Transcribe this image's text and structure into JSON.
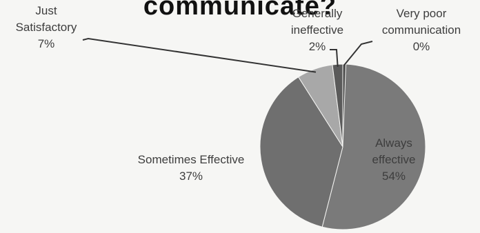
{
  "chart_data": {
    "type": "pie",
    "title": "communicate?",
    "slices": [
      {
        "label_lines": [
          "Always",
          "effective"
        ],
        "pct_label": "54%",
        "value": 54,
        "color": "#7a7a7a"
      },
      {
        "label_lines": [
          "Sometimes Effective"
        ],
        "pct_label": "37%",
        "value": 37,
        "color": "#6f6f6f"
      },
      {
        "label_lines": [
          "Just",
          "Satisfactory"
        ],
        "pct_label": "7%",
        "value": 7,
        "color": "#a8a8a8"
      },
      {
        "label_lines": [
          "Generally",
          "ineffective"
        ],
        "pct_label": "2%",
        "value": 2,
        "color": "#5a5a5a"
      },
      {
        "label_lines": [
          "Very poor",
          "communication"
        ],
        "pct_label": "0%",
        "value": 0,
        "color": "#4a4a4a"
      }
    ]
  }
}
